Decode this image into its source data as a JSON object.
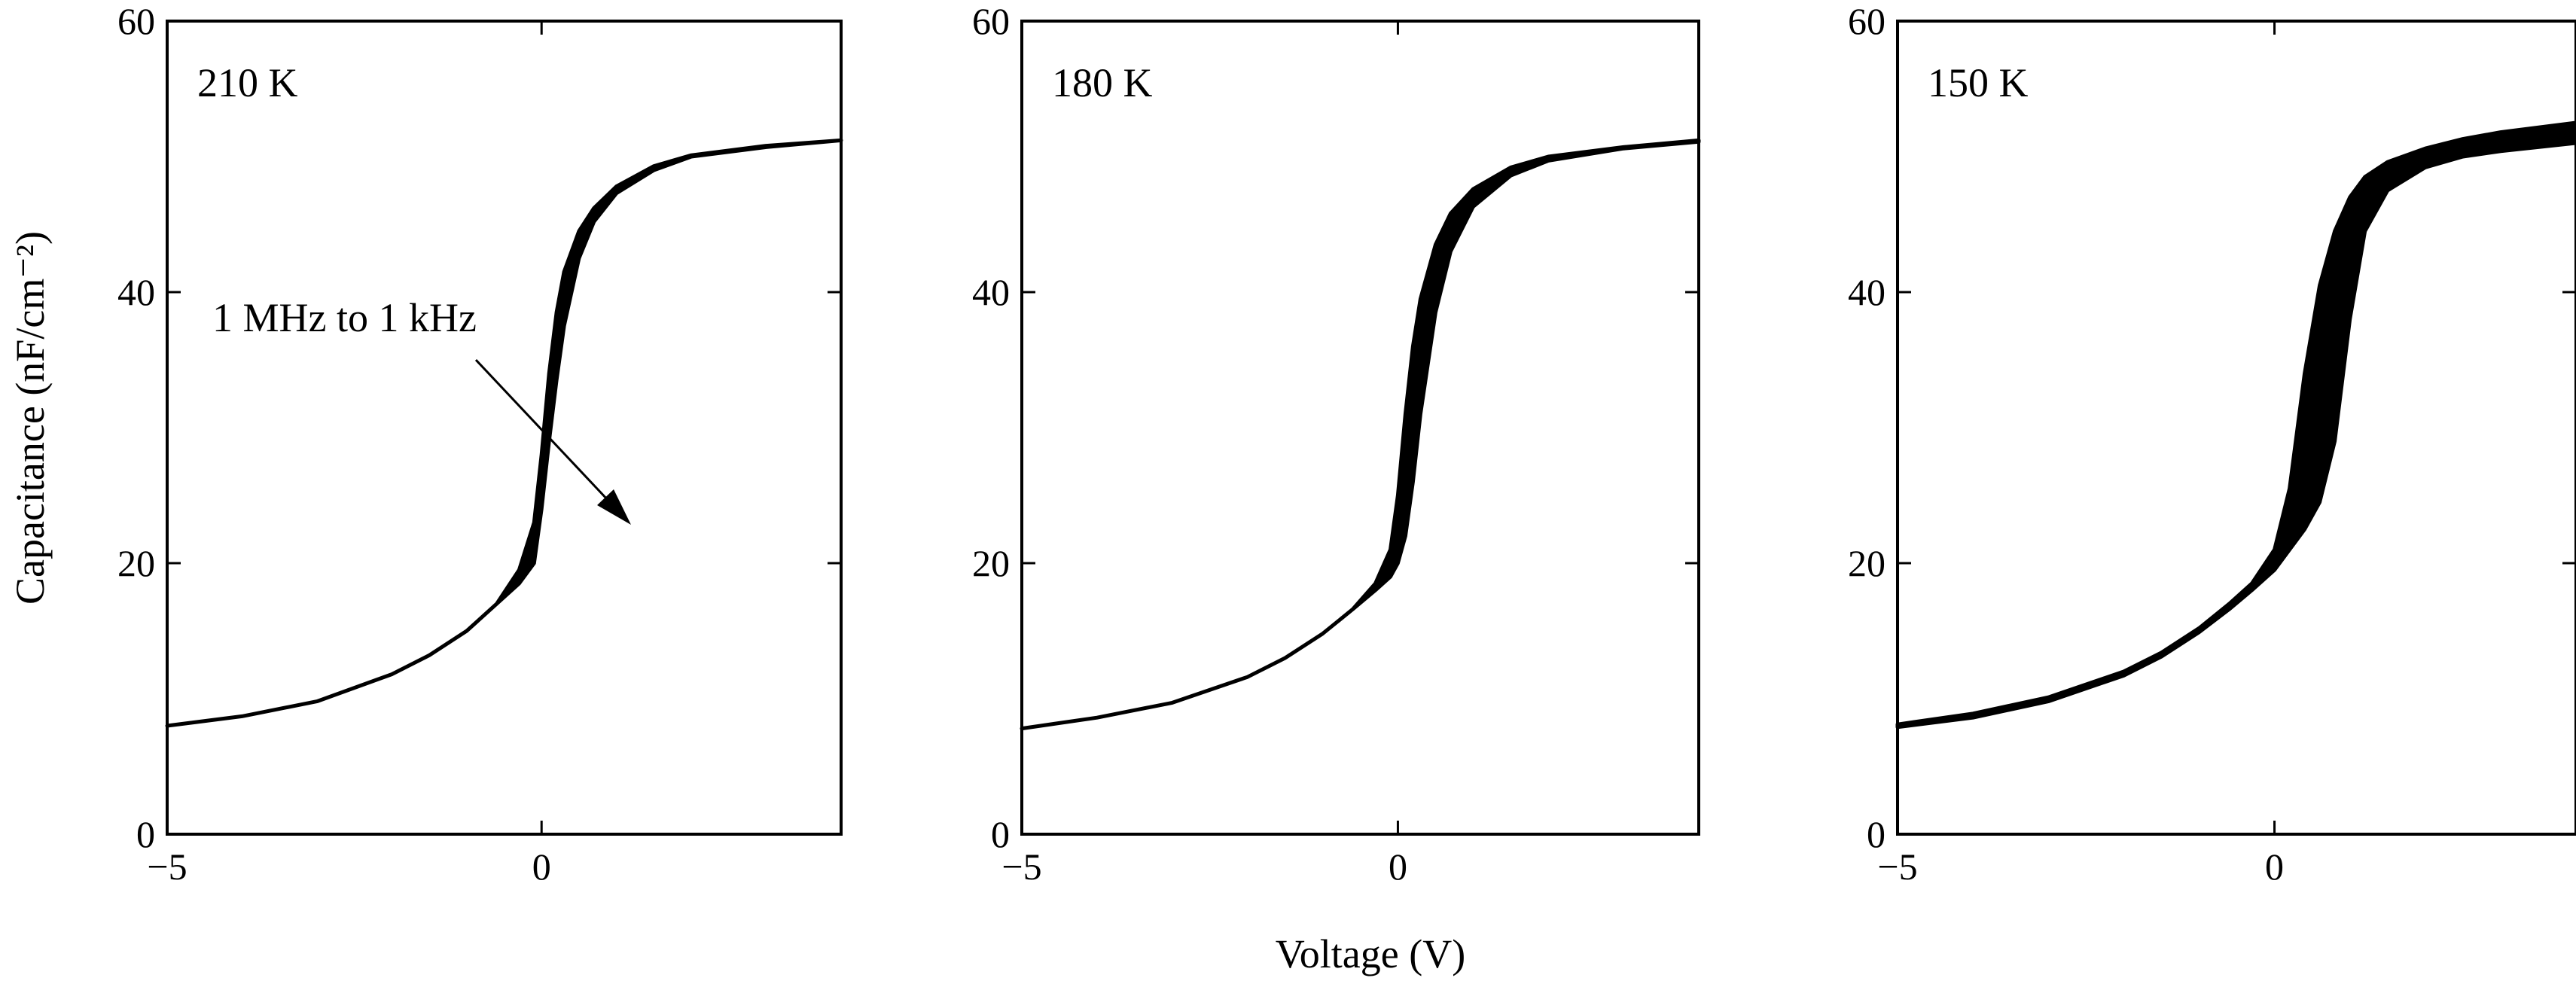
{
  "figure": {
    "ylabel": "Capacitance (nF/cm⁻²)",
    "xlabel": "Voltage (V)"
  },
  "chart_data": [
    {
      "type": "line",
      "label": "210 K",
      "xlim": [
        -5,
        4
      ],
      "ylim": [
        0,
        60
      ],
      "x_ticks": [
        "−5",
        "0"
      ],
      "y_ticks": [
        "0",
        "20",
        "40",
        "60"
      ],
      "annotation": "1 MHz to 1 kHz",
      "band": {
        "x": [
          -5.0,
          -4.0,
          -3.0,
          -2.0,
          -1.5,
          -1.0,
          -0.6,
          -0.3,
          -0.1,
          0.0,
          0.1,
          0.2,
          0.3,
          0.5,
          0.7,
          1.0,
          1.5,
          2.0,
          3.0,
          4.0
        ],
        "upper": [
          8.0,
          8.7,
          9.8,
          11.8,
          13.2,
          15.0,
          17.0,
          19.5,
          23.0,
          28.0,
          34.0,
          38.5,
          41.5,
          44.5,
          46.2,
          47.8,
          49.3,
          50.1,
          50.8,
          51.2
        ],
        "lower": [
          8.0,
          8.7,
          9.8,
          11.8,
          13.2,
          15.0,
          17.0,
          18.5,
          20.0,
          24.0,
          29.0,
          33.5,
          37.5,
          42.5,
          45.2,
          47.3,
          49.0,
          50.0,
          50.7,
          51.2
        ]
      }
    },
    {
      "type": "line",
      "label": "180 K",
      "xlim": [
        -5,
        4
      ],
      "ylim": [
        0,
        60
      ],
      "x_ticks": [
        "−5",
        "0"
      ],
      "y_ticks": [
        "0",
        "20",
        "40",
        "60"
      ],
      "band": {
        "x": [
          -5.0,
          -4.0,
          -3.0,
          -2.0,
          -1.5,
          -1.0,
          -0.6,
          -0.3,
          -0.1,
          0.0,
          0.1,
          0.2,
          0.3,
          0.5,
          0.7,
          1.0,
          1.5,
          2.0,
          3.0,
          4.0
        ],
        "upper": [
          7.8,
          8.6,
          9.7,
          11.6,
          13.0,
          14.8,
          16.6,
          18.5,
          21.0,
          25.0,
          31.0,
          36.0,
          39.5,
          43.5,
          45.8,
          47.6,
          49.2,
          50.0,
          50.7,
          51.2
        ],
        "lower": [
          7.8,
          8.6,
          9.7,
          11.6,
          13.0,
          14.8,
          16.6,
          18.0,
          19.0,
          20.0,
          22.0,
          26.0,
          31.0,
          38.5,
          43.0,
          46.3,
          48.6,
          49.7,
          50.6,
          51.1
        ]
      }
    },
    {
      "type": "line",
      "label": "150 K",
      "xlim": [
        -5,
        4
      ],
      "ylim": [
        0,
        60
      ],
      "x_ticks": [
        "−5",
        "0"
      ],
      "y_ticks": [
        "0",
        "20",
        "40",
        "60"
      ],
      "band": {
        "x": [
          -5.0,
          -4.0,
          -3.0,
          -2.0,
          -1.5,
          -1.0,
          -0.6,
          -0.3,
          0.0,
          0.2,
          0.4,
          0.6,
          0.8,
          1.0,
          1.2,
          1.5,
          2.0,
          2.5,
          3.0,
          4.0
        ],
        "upper": [
          8.1,
          8.9,
          10.1,
          12.0,
          13.4,
          15.2,
          17.0,
          18.5,
          21.0,
          25.5,
          34.0,
          40.5,
          44.5,
          47.0,
          48.5,
          49.6,
          50.6,
          51.3,
          51.8,
          52.5
        ],
        "lower": [
          7.9,
          8.6,
          9.8,
          11.7,
          13.1,
          14.9,
          16.6,
          18.0,
          19.5,
          21.0,
          22.5,
          24.5,
          29.0,
          38.0,
          44.5,
          47.5,
          49.2,
          50.0,
          50.4,
          51.0
        ]
      }
    }
  ]
}
